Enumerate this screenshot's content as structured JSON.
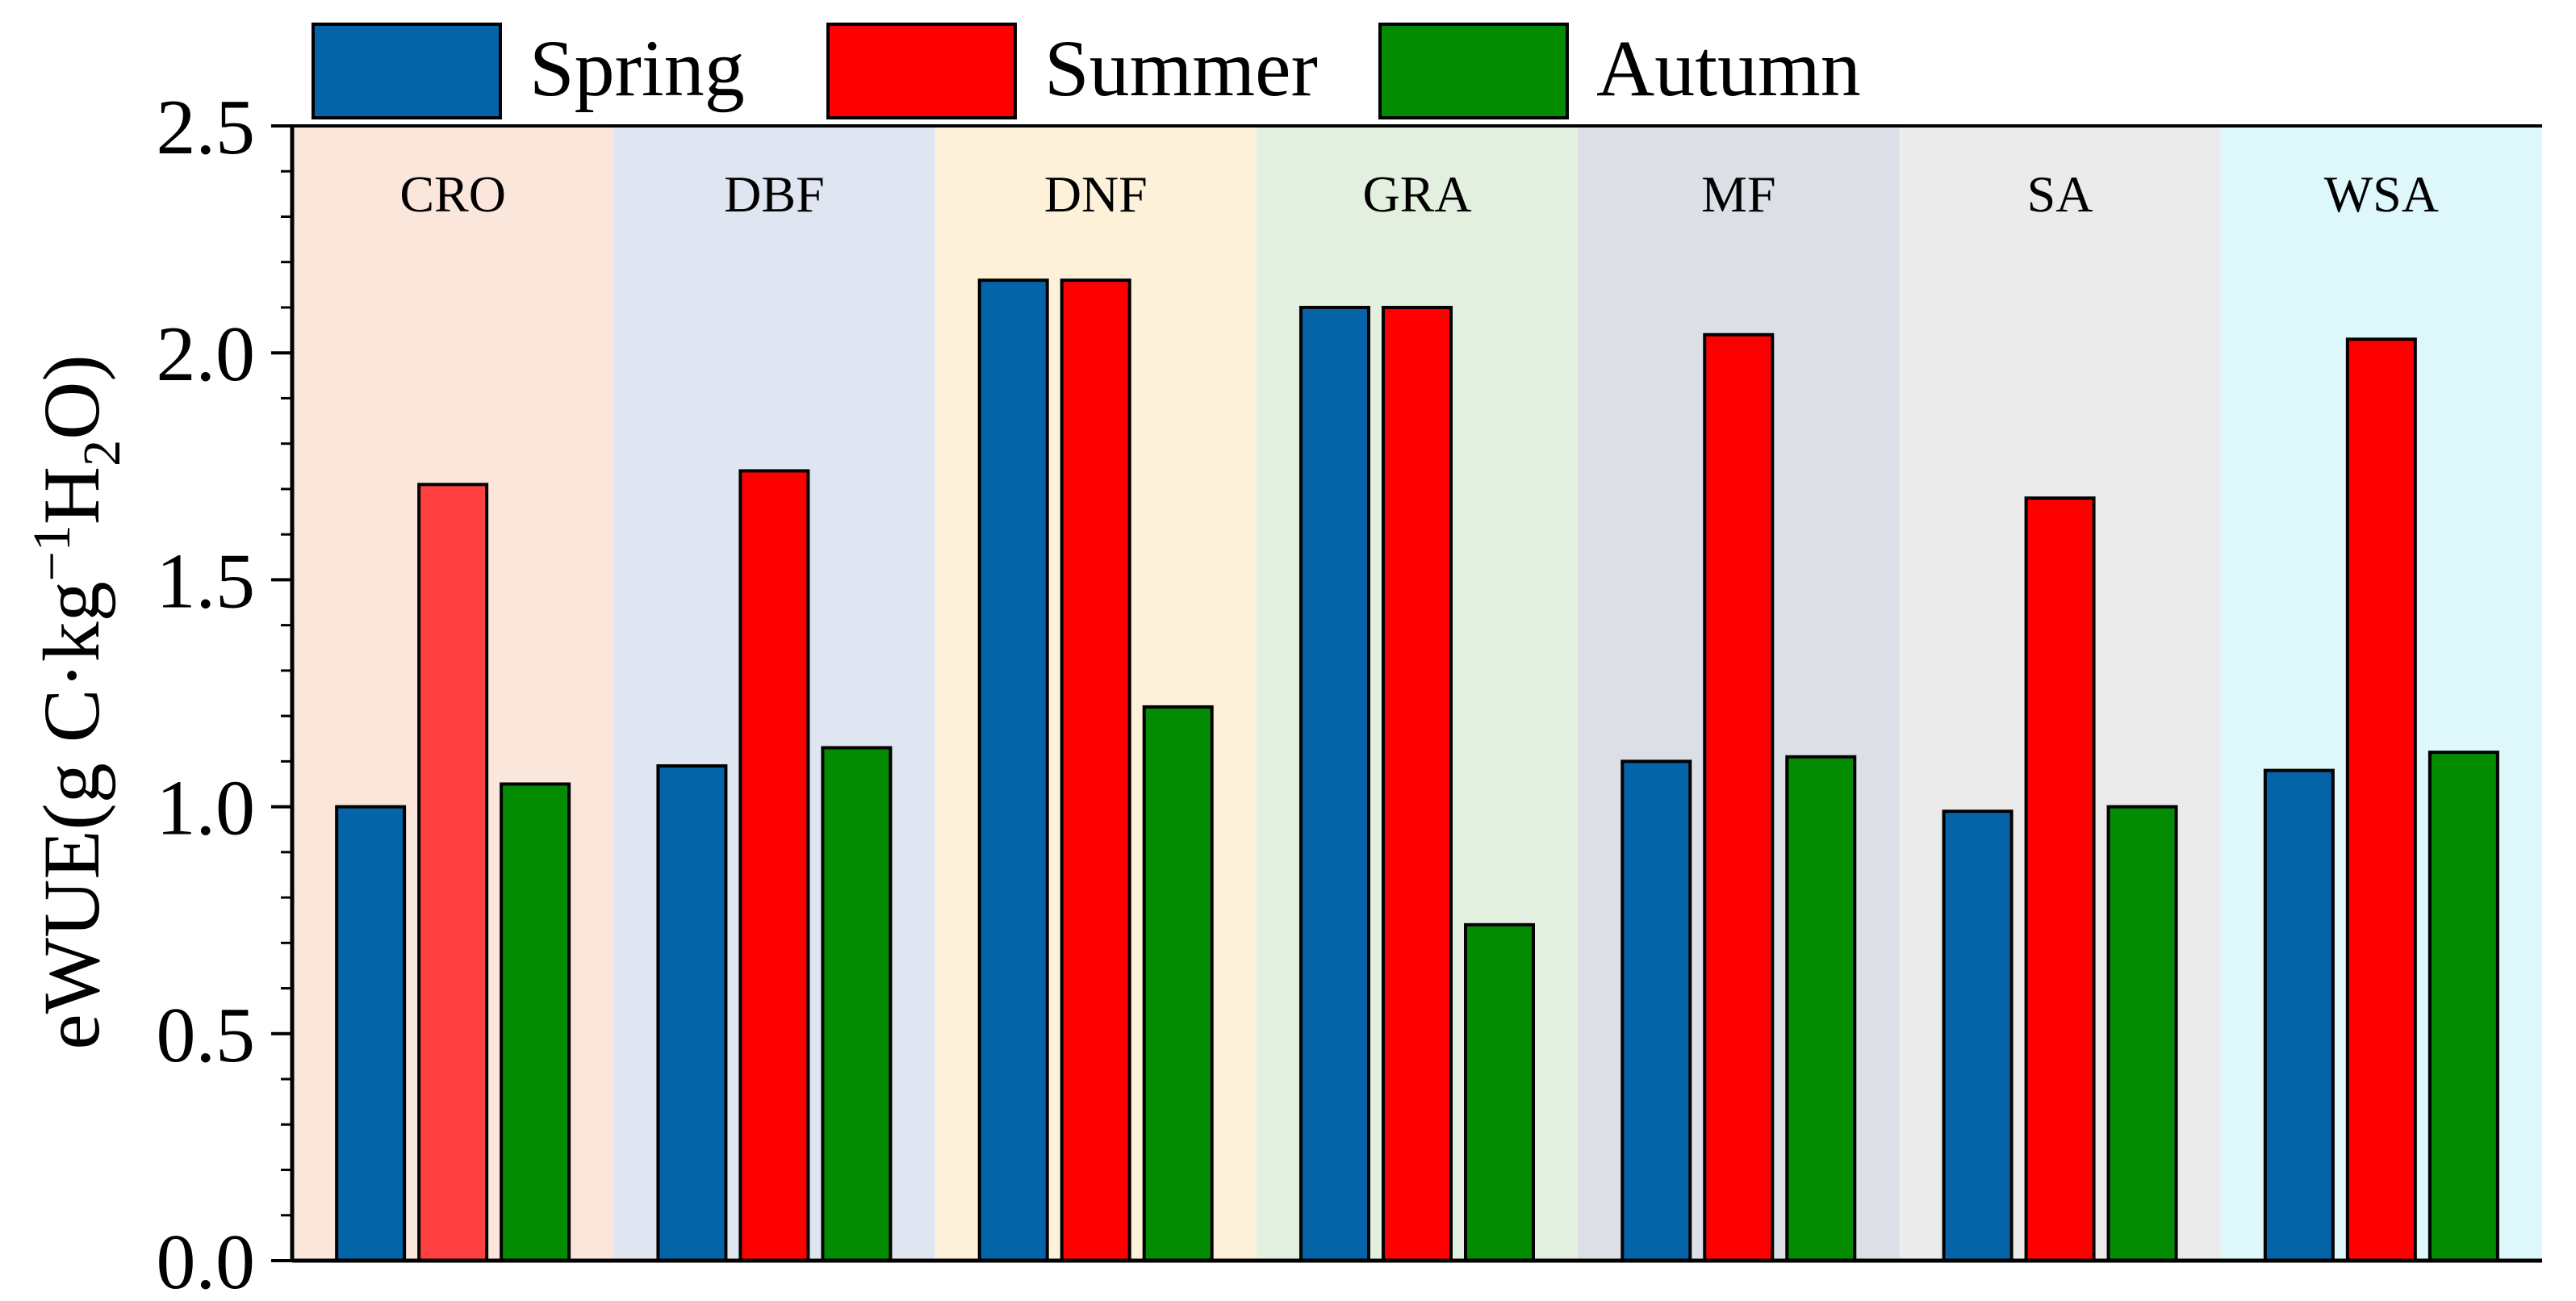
{
  "chart_data": {
    "type": "bar",
    "title": "",
    "xlabel": "",
    "ylabel_parts": {
      "prefix": "eWUE(g C·kg",
      "sup": "−1",
      "mid": "H",
      "sub": "2",
      "suffix": "O)"
    },
    "ylim": [
      0,
      2.5
    ],
    "yticks": [
      0.0,
      0.5,
      1.0,
      1.5,
      2.0,
      2.5
    ],
    "ytick_labels": [
      "0.0",
      "0.5",
      "1.0",
      "1.5",
      "2.0",
      "2.5"
    ],
    "categories": [
      "CRO",
      "DBF",
      "DNF",
      "GRA",
      "MF",
      "SA",
      "WSA"
    ],
    "category_backgrounds": [
      "#fbe6dc",
      "#dfe6f1",
      "#fdf2d9",
      "#e3efdf",
      "#dce0e6",
      "#ebebeb",
      "#ddf7fb"
    ],
    "series": [
      {
        "name": "Spring",
        "color": "#0563a7",
        "values": [
          1.0,
          1.09,
          2.16,
          2.1,
          1.1,
          0.99,
          1.08
        ]
      },
      {
        "name": "Summer",
        "color": "#ff0000",
        "values": [
          1.71,
          1.74,
          2.16,
          2.1,
          2.04,
          1.68,
          2.03
        ]
      },
      {
        "name": "Autumn",
        "color": "#038b03",
        "values": [
          1.05,
          1.13,
          1.22,
          0.74,
          1.11,
          1.0,
          1.12
        ]
      }
    ],
    "series_color_overrides": {
      "Summer": {
        "CRO": "#ff4040"
      }
    },
    "legend": {
      "position": "top",
      "entries": [
        "Spring",
        "Summer",
        "Autumn"
      ]
    },
    "grid": false
  }
}
